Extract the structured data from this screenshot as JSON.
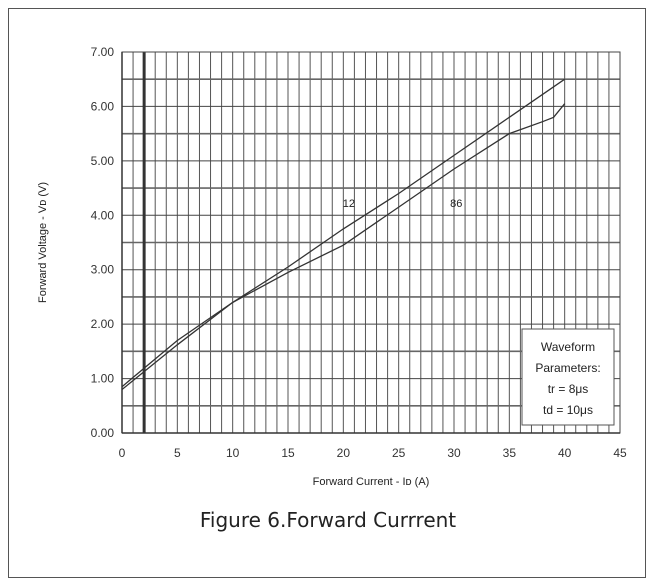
{
  "caption": "Figure 6.Forward Currrent",
  "chart_data": {
    "type": "line",
    "xlabel": "Forward Current - Iᴅ (A)",
    "ylabel": "Forward Voltage - Vᴅ (V)",
    "xlim": [
      0,
      45
    ],
    "ylim": [
      0,
      7
    ],
    "xticks": [
      "0",
      "5",
      "10",
      "15",
      "20",
      "25",
      "30",
      "35",
      "40",
      "45"
    ],
    "yticks": [
      "0.00",
      "1.00",
      "2.00",
      "3.00",
      "4.00",
      "5.00",
      "6.00",
      "7.00"
    ],
    "grid": true,
    "series": [
      {
        "name": "12",
        "x": [
          0,
          5,
          10,
          15,
          20,
          25,
          30,
          35,
          40
        ],
        "y": [
          0.85,
          1.7,
          2.4,
          3.05,
          3.75,
          4.4,
          5.1,
          5.8,
          6.5
        ]
      },
      {
        "name": "86",
        "x": [
          0,
          5,
          10,
          15,
          20,
          25,
          30,
          35,
          38,
          39,
          40
        ],
        "y": [
          0.8,
          1.62,
          2.4,
          2.95,
          3.45,
          4.15,
          4.85,
          5.5,
          5.72,
          5.8,
          6.05
        ]
      }
    ],
    "annotations": [
      {
        "text": "12",
        "x": 20.5,
        "y": 4.15
      },
      {
        "text": "86",
        "x": 30.2,
        "y": 4.15
      }
    ],
    "legend_box": {
      "lines": [
        "Waveform",
        "Parameters:",
        "tr = 8μs",
        "td = 10μs"
      ],
      "placement": "bottom-right"
    }
  }
}
